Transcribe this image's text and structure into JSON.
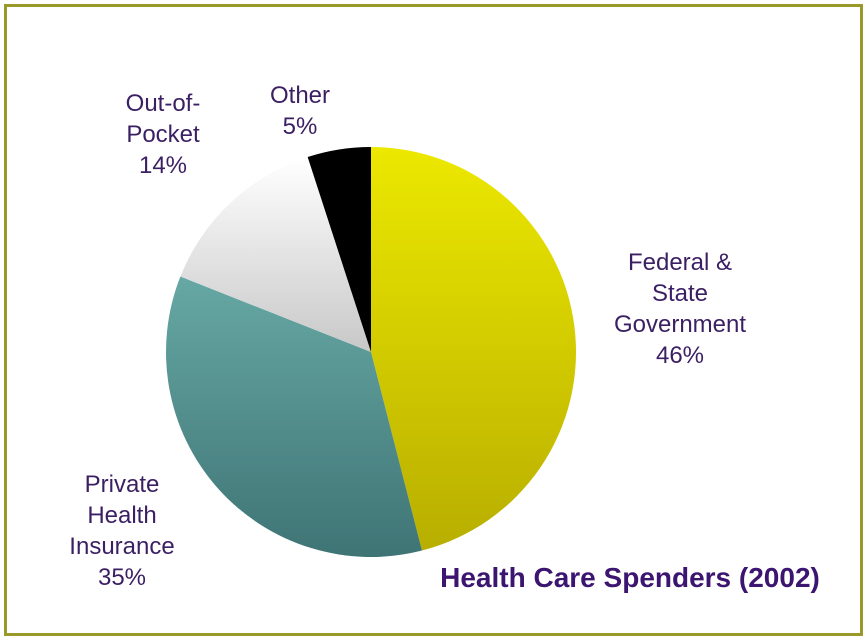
{
  "chart_data": {
    "type": "pie",
    "title": "Health Care Spenders (2002)",
    "slices": [
      {
        "name_lines": [
          "Federal &",
          "State",
          "Government"
        ],
        "label": "Federal & State Government",
        "value": 46,
        "value_label": "46%",
        "color": "#d8d400"
      },
      {
        "name_lines": [
          "Private",
          "Health",
          "Insurance"
        ],
        "label": "Private Health Insurance",
        "value": 35,
        "value_label": "35%",
        "color": "#4e8f8e"
      },
      {
        "name_lines": [
          "Out-of-",
          "Pocket"
        ],
        "label": "Out-of-Pocket",
        "value": 14,
        "value_label": "14%",
        "color": "#e4e4e4"
      },
      {
        "name_lines": [
          "Other"
        ],
        "label": "Other",
        "value": 5,
        "value_label": "5%",
        "color": "#000000"
      }
    ]
  },
  "colors": {
    "frame_border": "#9a9a2a",
    "label_text": "#3b1f63",
    "title_text": "#3b1570"
  }
}
